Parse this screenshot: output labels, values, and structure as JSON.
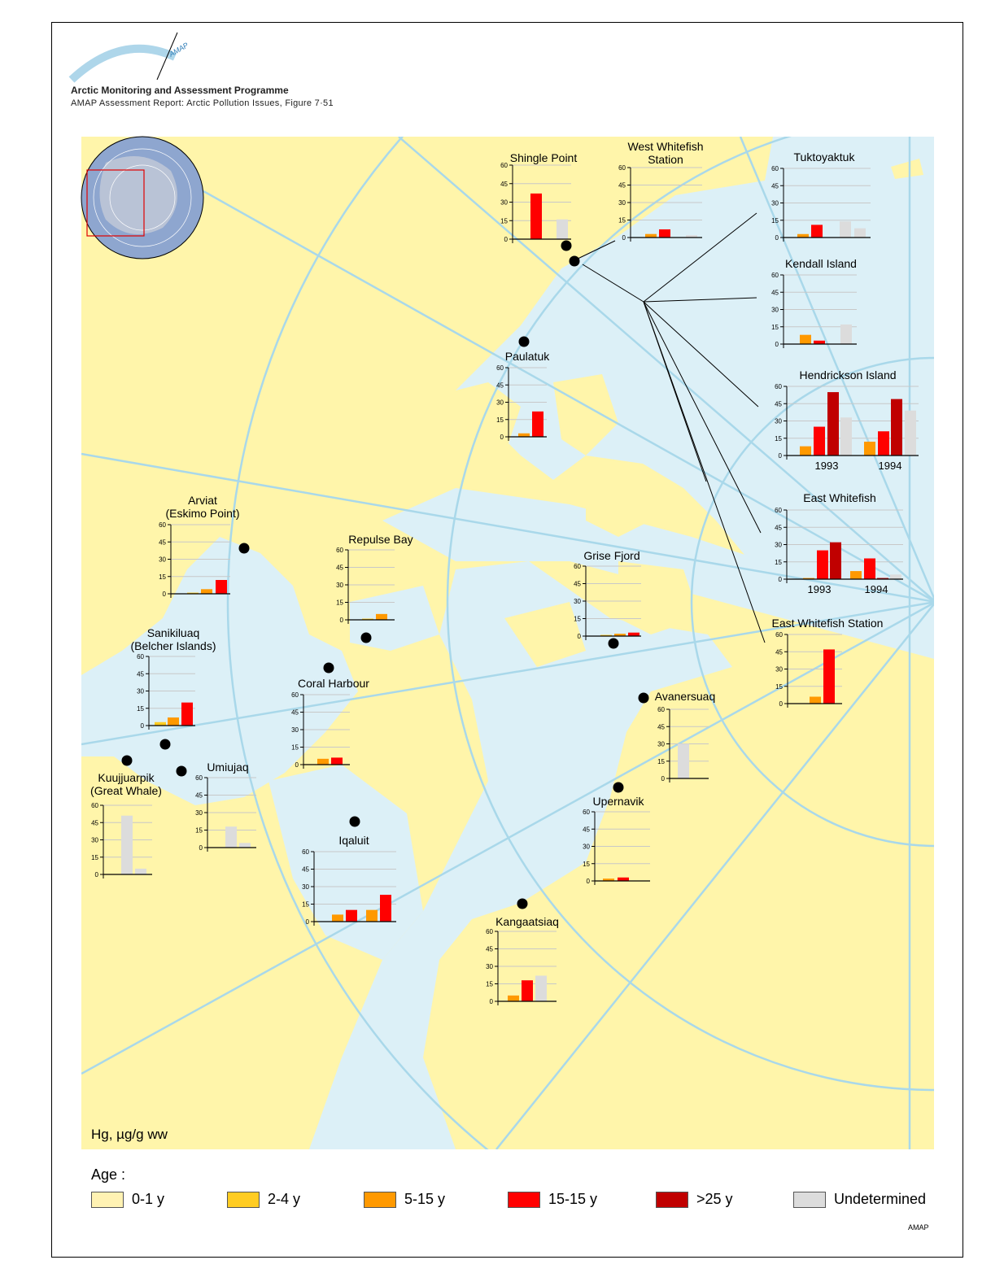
{
  "header": {
    "logo_text": "AMAP",
    "title": "Arctic Monitoring and Assessment Programme",
    "subtitle": "AMAP Assessment Report: Arctic Pollution Issues, Figure 7·51"
  },
  "map": {
    "unit_label": "Hg, µg/g ww",
    "colors": {
      "land": "#fff5aa",
      "water": "#dcf0f7",
      "graticule": "#a9d8ea",
      "station": "#000000",
      "inset_frame": "#e00000"
    }
  },
  "legend": {
    "title": "Age :",
    "items": [
      {
        "label": "0-1 y",
        "color": "#fff2b3"
      },
      {
        "label": "2-4 y",
        "color": "#ffcc22"
      },
      {
        "label": "5-15 y",
        "color": "#ff9900"
      },
      {
        "label": "15-15 y",
        "color": "#ff0000"
      },
      {
        "label": ">25 y",
        "color": "#c00000"
      },
      {
        "label": "Undetermined",
        "color": "#dcdcdc"
      }
    ]
  },
  "footer": {
    "credit": "AMAP"
  },
  "chart_data": [
    {
      "type": "bar",
      "title": [
        "Shingle Point"
      ],
      "ylim": [
        0,
        60
      ],
      "yticks": [
        0,
        15,
        30,
        45,
        60
      ],
      "groups": [
        {
          "label": "",
          "bars": [
            null,
            {
              "age": "15-15 y",
              "value": 37
            },
            null,
            {
              "age": "Undetermined",
              "value": 16
            }
          ]
        }
      ]
    },
    {
      "type": "bar",
      "title": [
        "West Whitefish",
        "Station"
      ],
      "ylim": [
        0,
        60
      ],
      "yticks": [
        0,
        15,
        30,
        45,
        60
      ],
      "groups": [
        {
          "label": "",
          "bars": [
            {
              "age": "5-15 y",
              "value": 3
            },
            {
              "age": "15-15 y",
              "value": 7
            },
            null,
            {
              "age": "Undetermined",
              "value": 2
            }
          ]
        }
      ]
    },
    {
      "type": "bar",
      "title": [
        "Tuktoyaktuk"
      ],
      "ylim": [
        0,
        60
      ],
      "yticks": [
        0,
        15,
        30,
        45,
        60
      ],
      "groups": [
        {
          "label": "",
          "bars": [
            {
              "age": "5-15 y",
              "value": 3
            },
            {
              "age": "15-15 y",
              "value": 11
            },
            null,
            {
              "age": "Undetermined",
              "value": 14
            },
            {
              "age": "Undetermined",
              "value": 8
            }
          ]
        }
      ]
    },
    {
      "type": "bar",
      "title": [
        "Kendall Island"
      ],
      "ylim": [
        0,
        60
      ],
      "yticks": [
        0,
        15,
        30,
        45,
        60
      ],
      "groups": [
        {
          "label": "",
          "bars": [
            {
              "age": "5-15 y",
              "value": 8
            },
            {
              "age": "15-15 y",
              "value": 3
            },
            null,
            {
              "age": "Undetermined",
              "value": 17
            }
          ]
        }
      ]
    },
    {
      "type": "bar",
      "title": [
        "Paulatuk"
      ],
      "ylim": [
        0,
        60
      ],
      "yticks": [
        0,
        15,
        30,
        45,
        60
      ],
      "groups": [
        {
          "label": "",
          "bars": [
            {
              "age": "5-15 y",
              "value": 3
            },
            {
              "age": "15-15 y",
              "value": 22
            }
          ]
        }
      ]
    },
    {
      "type": "bar",
      "title": [
        "Hendrickson Island"
      ],
      "ylim": [
        0,
        60
      ],
      "yticks": [
        0,
        15,
        30,
        45,
        60
      ],
      "groups": [
        {
          "label": "1993",
          "bars": [
            {
              "age": "5-15 y",
              "value": 8
            },
            {
              "age": "15-15 y",
              "value": 25
            },
            {
              "age": ">25 y",
              "value": 55
            },
            {
              "age": "Undetermined",
              "value": 33
            }
          ]
        },
        {
          "label": "1994",
          "bars": [
            {
              "age": "5-15 y",
              "value": 12
            },
            {
              "age": "15-15 y",
              "value": 21
            },
            {
              "age": ">25 y",
              "value": 49
            },
            {
              "age": "Undetermined",
              "value": 39
            }
          ]
        }
      ]
    },
    {
      "type": "bar",
      "title": [
        "East Whitefish"
      ],
      "ylim": [
        0,
        60
      ],
      "yticks": [
        0,
        15,
        30,
        45,
        60
      ],
      "groups": [
        {
          "label": "1993",
          "bars": [
            {
              "age": "5-15 y",
              "value": 1
            },
            {
              "age": "15-15 y",
              "value": 25
            },
            {
              "age": ">25 y",
              "value": 32
            }
          ]
        },
        {
          "label": "1994",
          "bars": [
            {
              "age": "5-15 y",
              "value": 7
            },
            {
              "age": "15-15 y",
              "value": 18
            },
            {
              "age": ">25 y",
              "value": 1
            },
            {
              "age": "Undetermined",
              "value": 4
            }
          ]
        }
      ]
    },
    {
      "type": "bar",
      "title": [
        "East Whitefish Station"
      ],
      "ylim": [
        0,
        60
      ],
      "yticks": [
        0,
        15,
        30,
        45,
        60
      ],
      "groups": [
        {
          "label": "",
          "bars": [
            {
              "age": "5-15 y",
              "value": 6
            },
            {
              "age": "15-15 y",
              "value": 47
            }
          ]
        }
      ]
    },
    {
      "type": "bar",
      "title": [
        "Arviat",
        "(Eskimo Point)"
      ],
      "ylim": [
        0,
        60
      ],
      "yticks": [
        0,
        15,
        30,
        45,
        60
      ],
      "groups": [
        {
          "label": "",
          "bars": [
            {
              "age": "2-4 y",
              "value": 1
            },
            {
              "age": "5-15 y",
              "value": 4
            },
            {
              "age": "15-15 y",
              "value": 12
            }
          ]
        }
      ]
    },
    {
      "type": "bar",
      "title": [
        "Repulse Bay"
      ],
      "ylim": [
        0,
        60
      ],
      "yticks": [
        0,
        15,
        30,
        45,
        60
      ],
      "groups": [
        {
          "label": "",
          "bars": [
            {
              "age": "2-4 y",
              "value": 1
            },
            {
              "age": "5-15 y",
              "value": 5
            }
          ]
        }
      ]
    },
    {
      "type": "bar",
      "title": [
        "Grise Fjord"
      ],
      "ylim": [
        0,
        60
      ],
      "yticks": [
        0,
        15,
        30,
        45,
        60
      ],
      "groups": [
        {
          "label": "",
          "bars": [
            {
              "age": "2-4 y",
              "value": 1
            },
            {
              "age": "5-15 y",
              "value": 2
            },
            {
              "age": "15-15 y",
              "value": 3
            }
          ]
        }
      ]
    },
    {
      "type": "bar",
      "title": [
        "Sanikiluaq",
        "(Belcher Islands)"
      ],
      "ylim": [
        0,
        60
      ],
      "yticks": [
        0,
        15,
        30,
        45,
        60
      ],
      "groups": [
        {
          "label": "",
          "bars": [
            {
              "age": "2-4 y",
              "value": 3
            },
            {
              "age": "5-15 y",
              "value": 7
            },
            {
              "age": "15-15 y",
              "value": 20
            }
          ]
        }
      ]
    },
    {
      "type": "bar",
      "title": [
        "Coral Harbour"
      ],
      "ylim": [
        0,
        60
      ],
      "yticks": [
        0,
        15,
        30,
        45,
        60
      ],
      "groups": [
        {
          "label": "",
          "bars": [
            {
              "age": "5-15 y",
              "value": 5
            },
            {
              "age": "15-15 y",
              "value": 6
            }
          ]
        }
      ]
    },
    {
      "type": "bar",
      "title": [
        "Avanersuaq"
      ],
      "ylim": [
        0,
        60
      ],
      "yticks": [
        0,
        15,
        30,
        45,
        60
      ],
      "groups": [
        {
          "label": "",
          "bars": [
            {
              "age": "Undetermined",
              "value": 30
            }
          ]
        }
      ]
    },
    {
      "type": "bar",
      "title": [
        "Kuujjuarpik",
        "(Great Whale)"
      ],
      "ylim": [
        0,
        60
      ],
      "yticks": [
        0,
        15,
        30,
        45,
        60
      ],
      "groups": [
        {
          "label": "",
          "bars": [
            {
              "age": "Undetermined",
              "value": 51
            },
            {
              "age": "Undetermined",
              "value": 5
            }
          ]
        }
      ]
    },
    {
      "type": "bar",
      "title": [
        "Umiujaq"
      ],
      "ylim": [
        0,
        60
      ],
      "yticks": [
        0,
        15,
        30,
        45,
        60
      ],
      "groups": [
        {
          "label": "",
          "bars": [
            {
              "age": "Undetermined",
              "value": 18
            },
            {
              "age": "Undetermined",
              "value": 4
            }
          ]
        }
      ]
    },
    {
      "type": "bar",
      "title": [
        "Iqaluit"
      ],
      "ylim": [
        0,
        60
      ],
      "yticks": [
        0,
        15,
        30,
        45,
        60
      ],
      "groups": [
        {
          "label": "",
          "bars": [
            {
              "age": "5-15 y",
              "value": 6
            },
            {
              "age": "15-15 y",
              "value": 10
            },
            {
              "age": "5-15 y",
              "value": 10
            },
            {
              "age": "15-15 y",
              "value": 23
            }
          ]
        }
      ]
    },
    {
      "type": "bar",
      "title": [
        "Upernavik"
      ],
      "ylim": [
        0,
        60
      ],
      "yticks": [
        0,
        15,
        30,
        45,
        60
      ],
      "groups": [
        {
          "label": "",
          "bars": [
            {
              "age": "5-15 y",
              "value": 2
            },
            {
              "age": "15-15 y",
              "value": 3
            }
          ]
        }
      ]
    },
    {
      "type": "bar",
      "title": [
        "Kangaatsiaq"
      ],
      "ylim": [
        0,
        60
      ],
      "yticks": [
        0,
        15,
        30,
        45,
        60
      ],
      "groups": [
        {
          "label": "",
          "bars": [
            {
              "age": "5-15 y",
              "value": 5
            },
            {
              "age": "15-15 y",
              "value": 18
            },
            {
              "age": "Undetermined",
              "value": 22
            }
          ]
        }
      ]
    }
  ]
}
